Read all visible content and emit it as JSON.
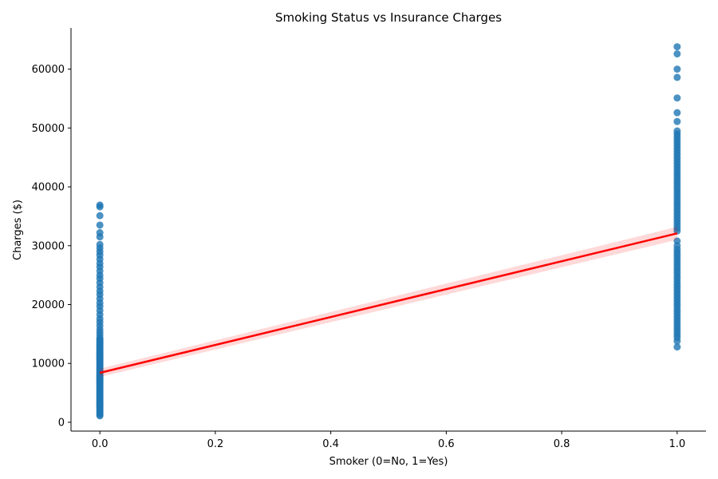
{
  "chart_data": {
    "type": "scatter",
    "title": "Smoking Status vs Insurance Charges",
    "xlabel": "Smoker (0=No, 1=Yes)",
    "ylabel": "Charges ($)",
    "xlim": [
      -0.05,
      1.05
    ],
    "ylim": [
      -1500,
      67000
    ],
    "xticks": [
      "0.0",
      "0.2",
      "0.4",
      "0.6",
      "0.8",
      "1.0"
    ],
    "xtick_values": [
      0.0,
      0.2,
      0.4,
      0.6,
      0.8,
      1.0
    ],
    "yticks": [
      "0",
      "10000",
      "20000",
      "30000",
      "40000",
      "50000",
      "60000"
    ],
    "ytick_values": [
      0,
      10000,
      20000,
      30000,
      40000,
      50000,
      60000
    ],
    "grid": false,
    "legend": "none",
    "point_color": "#1f77b4",
    "line_color": "#ff0000",
    "band_color": "#ff0000",
    "series": [
      {
        "x": 0,
        "y": [
          1100,
          1300,
          1500,
          1700,
          1900,
          2100,
          2300,
          2500,
          2700,
          2900,
          3100,
          3300,
          3500,
          3700,
          3900,
          4100,
          4300,
          4500,
          4700,
          4900,
          5100,
          5300,
          5500,
          5700,
          5900,
          6100,
          6300,
          6500,
          6700,
          6900,
          7100,
          7300,
          7500,
          7700,
          7900,
          8100,
          8300,
          8500,
          8700,
          8900,
          9100,
          9300,
          9500,
          9700,
          9900,
          10100,
          10300,
          10500,
          10700,
          10900,
          11100,
          11300,
          11500,
          11700,
          11900,
          12100,
          12300,
          12500,
          12700,
          12900,
          13100,
          13300,
          13500,
          13700,
          13900,
          14100,
          14300,
          14800,
          15300,
          15800,
          16400,
          17000,
          17600,
          18300,
          19000,
          19700,
          20300,
          21000,
          21700,
          22300,
          23000,
          23700,
          24400,
          25000,
          25700,
          26400,
          27000,
          27700,
          28400,
          29000,
          29600,
          30200,
          31500,
          32200,
          33500,
          35100,
          36600,
          36900
        ]
      },
      {
        "x": 1,
        "y": [
          12800,
          13800,
          14400,
          14900,
          15400,
          15900,
          16400,
          16900,
          17400,
          17900,
          18400,
          18900,
          19400,
          19900,
          20400,
          20900,
          21400,
          21900,
          22400,
          22900,
          23400,
          23900,
          24400,
          24900,
          25400,
          25900,
          26400,
          26900,
          27400,
          27900,
          28400,
          28900,
          29400,
          30000,
          30800,
          32500,
          33000,
          33500,
          34000,
          34500,
          35000,
          35500,
          36000,
          36500,
          37000,
          37500,
          38000,
          38500,
          39000,
          39500,
          40000,
          40500,
          41000,
          41500,
          42000,
          42500,
          43000,
          43500,
          44000,
          44500,
          45000,
          45500,
          46000,
          46500,
          47000,
          47500,
          48000,
          48500,
          49000,
          49500,
          51100,
          52600,
          55100,
          58600,
          60000,
          62600,
          63800
        ]
      }
    ],
    "regression": {
      "x": [
        0,
        1
      ],
      "y": [
        8400,
        32100
      ],
      "ci_low": [
        7700,
        31000
      ],
      "ci_high": [
        9100,
        33200
      ]
    }
  }
}
